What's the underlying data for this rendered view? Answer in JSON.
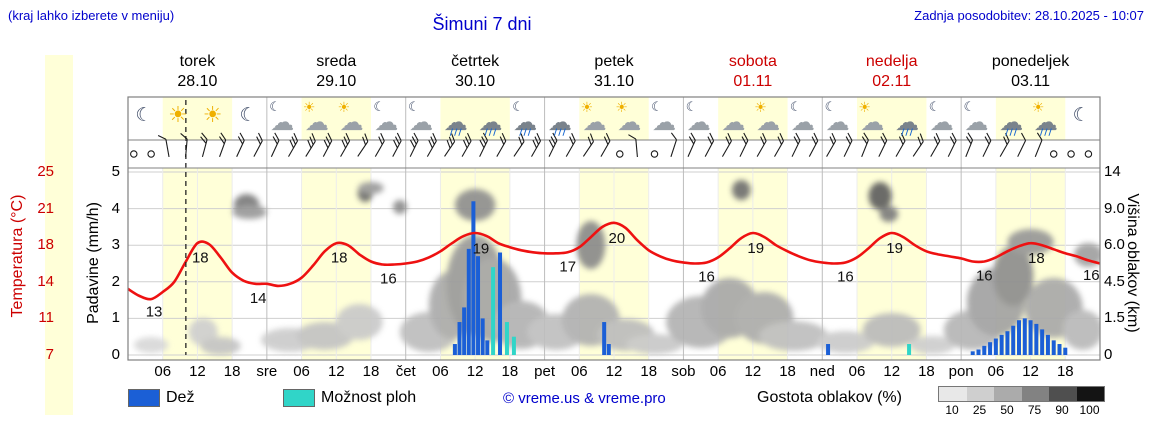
{
  "header": {
    "hint": "(kraj lahko izberete v meniju)",
    "updated": "Zadnja posodobitev: 28.10.2025 - 10:07",
    "title": "Šimuni 7 dni"
  },
  "colors": {
    "blue_text": "#0000cc",
    "red_text": "#cc0000",
    "temp_line": "#ee1111",
    "rain_bar": "#1b5fd6",
    "shower_bar": "#30d5c8",
    "day_band": "#ffffd8",
    "frame": "#808080",
    "grid": "#cfcfcf"
  },
  "days": [
    {
      "name": "torek",
      "date": "28.10",
      "red": false
    },
    {
      "name": "sreda",
      "date": "29.10",
      "red": false
    },
    {
      "name": "četrtek",
      "date": "30.10",
      "red": false
    },
    {
      "name": "petek",
      "date": "31.10",
      "red": false
    },
    {
      "name": "sobota",
      "date": "01.11",
      "red": true
    },
    {
      "name": "nedelja",
      "date": "02.11",
      "red": true
    },
    {
      "name": "ponedeljek",
      "date": "03.11",
      "red": false
    }
  ],
  "axes": {
    "temp_label": "Temperatura (°C)",
    "temp_ticks": [
      "25",
      "21",
      "18",
      "14",
      "11",
      "7"
    ],
    "precip_label": "Padavine (mm/h)",
    "precip_ticks": [
      "5",
      "4",
      "3",
      "2",
      "1",
      "0"
    ],
    "cloud_label": "Višina oblakov (km)",
    "cloud_ticks": [
      "14",
      "9.0",
      "6.0",
      "4.5",
      "1.5",
      "0"
    ],
    "hour_ticks": [
      "06",
      "12",
      "18"
    ],
    "day_abbrs": [
      "sre",
      "čet",
      "pet",
      "sob",
      "ned",
      "pon"
    ]
  },
  "legend": {
    "rain": "Dež",
    "showers": "Možnost ploh",
    "copyright": "© vreme.us & vreme.pro",
    "cloud_density": "Gostota oblakov (%)",
    "scale_values": [
      "10",
      "25",
      "50",
      "75",
      "90",
      "100"
    ],
    "scale_colors": [
      "#e8e8e8",
      "#cfcfcf",
      "#ababab",
      "#828282",
      "#4f4f4f",
      "#141414"
    ]
  },
  "chart_data": {
    "type": "meteogram",
    "hours_total": 168,
    "current_time_h": 10,
    "precip_axis_range": [
      0,
      5
    ],
    "temp_gridline_values": [
      25,
      21,
      18,
      14,
      11,
      7
    ],
    "temp_points": [
      [
        0,
        13.5
      ],
      [
        2,
        12.8
      ],
      [
        4,
        12.5
      ],
      [
        6,
        13.2
      ],
      [
        8,
        14.2
      ],
      [
        10,
        16.2
      ],
      [
        12,
        18
      ],
      [
        14,
        17.9
      ],
      [
        16,
        16.6
      ],
      [
        18,
        15.1
      ],
      [
        20,
        14.3
      ],
      [
        22,
        14
      ],
      [
        24,
        14
      ],
      [
        26,
        13.8
      ],
      [
        28,
        14
      ],
      [
        30,
        14.6
      ],
      [
        32,
        15.8
      ],
      [
        34,
        17.2
      ],
      [
        36,
        18
      ],
      [
        38,
        17.8
      ],
      [
        40,
        16.9
      ],
      [
        42,
        16.2
      ],
      [
        44,
        15.9
      ],
      [
        46,
        15.9
      ],
      [
        48,
        16
      ],
      [
        50,
        16.2
      ],
      [
        52,
        16.6
      ],
      [
        54,
        17.2
      ],
      [
        56,
        18
      ],
      [
        58,
        18.7
      ],
      [
        60,
        19
      ],
      [
        62,
        18.7
      ],
      [
        64,
        18
      ],
      [
        66,
        17.6
      ],
      [
        68,
        17.3
      ],
      [
        70,
        17.1
      ],
      [
        72,
        17
      ],
      [
        74,
        17
      ],
      [
        76,
        17.1
      ],
      [
        78,
        17.6
      ],
      [
        80,
        18.6
      ],
      [
        82,
        19.6
      ],
      [
        84,
        20
      ],
      [
        86,
        19.5
      ],
      [
        88,
        18.3
      ],
      [
        90,
        17.3
      ],
      [
        92,
        16.7
      ],
      [
        94,
        16.3
      ],
      [
        96,
        16.1
      ],
      [
        98,
        16
      ],
      [
        100,
        16.1
      ],
      [
        102,
        16.6
      ],
      [
        104,
        17.5
      ],
      [
        106,
        18.5
      ],
      [
        108,
        19
      ],
      [
        110,
        18.6
      ],
      [
        112,
        17.8
      ],
      [
        114,
        17.2
      ],
      [
        116,
        16.7
      ],
      [
        118,
        16.3
      ],
      [
        120,
        16.1
      ],
      [
        122,
        16
      ],
      [
        124,
        16.1
      ],
      [
        126,
        16.6
      ],
      [
        128,
        17.5
      ],
      [
        130,
        18.5
      ],
      [
        132,
        19
      ],
      [
        134,
        18.6
      ],
      [
        136,
        17.8
      ],
      [
        138,
        17.2
      ],
      [
        140,
        16.9
      ],
      [
        142,
        16.7
      ],
      [
        144,
        16.5
      ],
      [
        146,
        16.2
      ],
      [
        148,
        16.2
      ],
      [
        150,
        16.6
      ],
      [
        152,
        17.2
      ],
      [
        154,
        17.7
      ],
      [
        156,
        18
      ],
      [
        158,
        17.8
      ],
      [
        160,
        17.4
      ],
      [
        162,
        17
      ],
      [
        164,
        16.7
      ],
      [
        166,
        16.3
      ],
      [
        168,
        16
      ]
    ],
    "temp_labels": [
      [
        "13",
        4.5
      ],
      [
        "18",
        12.5
      ],
      [
        "14",
        22.5
      ],
      [
        "18",
        36.5
      ],
      [
        "16",
        45
      ],
      [
        "19",
        61
      ],
      [
        "17",
        76
      ],
      [
        "20",
        84.5
      ],
      [
        "16",
        100
      ],
      [
        "19",
        108.5
      ],
      [
        "16",
        124
      ],
      [
        "19",
        132.5
      ],
      [
        "16",
        148
      ],
      [
        "18",
        157
      ],
      [
        "16",
        166.5
      ]
    ],
    "precip_bars": [
      [
        56.5,
        0.3,
        "r"
      ],
      [
        57.3,
        0.9,
        "r"
      ],
      [
        58.1,
        1.3,
        "r"
      ],
      [
        58.9,
        2.9,
        "r"
      ],
      [
        59.7,
        4.2,
        "r"
      ],
      [
        60.5,
        2.7,
        "r"
      ],
      [
        61.3,
        1.0,
        "r"
      ],
      [
        62.1,
        0.4,
        "r"
      ],
      [
        63.1,
        2.4,
        "s"
      ],
      [
        64.3,
        2.8,
        "r"
      ],
      [
        65.5,
        0.9,
        "s"
      ],
      [
        66.7,
        0.5,
        "s"
      ],
      [
        82.3,
        0.9,
        "r"
      ],
      [
        83.1,
        0.3,
        "r"
      ],
      [
        121,
        0.3,
        "r"
      ],
      [
        135,
        0.3,
        "s"
      ],
      [
        146,
        0.1,
        "r"
      ],
      [
        147,
        0.15,
        "r"
      ],
      [
        148,
        0.25,
        "r"
      ],
      [
        149,
        0.35,
        "r"
      ],
      [
        150,
        0.45,
        "r"
      ],
      [
        151,
        0.55,
        "r"
      ],
      [
        152,
        0.65,
        "r"
      ],
      [
        153,
        0.8,
        "r"
      ],
      [
        154,
        0.95,
        "r"
      ],
      [
        155,
        1.0,
        "r"
      ],
      [
        156,
        0.95,
        "r"
      ],
      [
        157,
        0.85,
        "r"
      ],
      [
        158,
        0.7,
        "r"
      ],
      [
        159,
        0.55,
        "r"
      ],
      [
        160,
        0.4,
        "r"
      ],
      [
        161,
        0.3,
        "r"
      ],
      [
        162,
        0.2,
        "r"
      ]
    ],
    "weather_icons": [
      [
        3,
        "moon"
      ],
      [
        9,
        "sun"
      ],
      [
        15,
        "sun"
      ],
      [
        21,
        "moon"
      ],
      [
        27,
        "cloud-moon"
      ],
      [
        33,
        "sun-cloud"
      ],
      [
        39,
        "sun-cloud"
      ],
      [
        45,
        "cloud-moon"
      ],
      [
        51,
        "cloud-moon"
      ],
      [
        57,
        "rain"
      ],
      [
        63,
        "rain"
      ],
      [
        69,
        "rain-moon"
      ],
      [
        75,
        "rain"
      ],
      [
        81,
        "sun-cloud"
      ],
      [
        87,
        "sun-cloud"
      ],
      [
        93,
        "cloud-moon"
      ],
      [
        99,
        "cloud-moon"
      ],
      [
        105,
        "cloud"
      ],
      [
        111,
        "cloud-sun"
      ],
      [
        117,
        "cloud-moon"
      ],
      [
        123,
        "cloud-moon"
      ],
      [
        129,
        "cloud-sun"
      ],
      [
        135,
        "rain"
      ],
      [
        141,
        "cloud-moon"
      ],
      [
        147,
        "cloud-moon"
      ],
      [
        153,
        "rain"
      ],
      [
        159,
        "rain-sun"
      ],
      [
        165,
        "moon"
      ]
    ],
    "wind_barbs": [
      [
        1,
        0,
        0
      ],
      [
        4,
        0,
        0
      ],
      [
        7,
        100,
        1
      ],
      [
        10,
        85,
        1
      ],
      [
        13,
        75,
        2
      ],
      [
        16,
        70,
        2
      ],
      [
        19,
        65,
        2
      ],
      [
        22,
        62,
        2
      ],
      [
        25,
        65,
        2
      ],
      [
        28,
        60,
        3
      ],
      [
        31,
        58,
        3
      ],
      [
        34,
        62,
        3
      ],
      [
        37,
        60,
        3
      ],
      [
        40,
        56,
        2
      ],
      [
        43,
        60,
        2
      ],
      [
        46,
        62,
        3
      ],
      [
        49,
        64,
        3
      ],
      [
        52,
        60,
        3
      ],
      [
        55,
        56,
        3
      ],
      [
        58,
        60,
        3
      ],
      [
        61,
        64,
        3
      ],
      [
        64,
        60,
        2
      ],
      [
        67,
        56,
        2
      ],
      [
        70,
        60,
        3
      ],
      [
        73,
        64,
        3
      ],
      [
        76,
        60,
        2
      ],
      [
        79,
        56,
        2
      ],
      [
        82,
        60,
        2
      ],
      [
        85,
        0,
        0
      ],
      [
        88,
        95,
        1
      ],
      [
        91,
        0,
        0
      ],
      [
        94,
        72,
        1
      ],
      [
        97,
        66,
        2
      ],
      [
        100,
        62,
        2
      ],
      [
        103,
        60,
        2
      ],
      [
        106,
        64,
        2
      ],
      [
        109,
        60,
        2
      ],
      [
        112,
        60,
        2
      ],
      [
        115,
        64,
        2
      ],
      [
        118,
        62,
        2
      ],
      [
        121,
        60,
        2
      ],
      [
        124,
        64,
        2
      ],
      [
        127,
        68,
        2
      ],
      [
        130,
        64,
        2
      ],
      [
        133,
        60,
        2
      ],
      [
        136,
        56,
        2
      ],
      [
        139,
        60,
        2
      ],
      [
        142,
        64,
        2
      ],
      [
        145,
        68,
        2
      ],
      [
        148,
        64,
        2
      ],
      [
        151,
        60,
        2
      ],
      [
        154,
        64,
        1
      ],
      [
        157,
        68,
        1
      ],
      [
        160,
        0,
        0
      ],
      [
        163,
        0,
        0
      ],
      [
        166,
        0,
        0
      ]
    ],
    "cloud_blobs": [
      [
        4,
        345,
        3,
        8,
        "#d8d8d8"
      ],
      [
        13,
        332,
        2.5,
        14,
        "#cfcfcf"
      ],
      [
        16,
        346,
        3.5,
        9,
        "#c4c4c4"
      ],
      [
        20.5,
        205,
        2.2,
        11,
        "#7a7a7a"
      ],
      [
        21,
        212,
        3,
        7,
        "#999999"
      ],
      [
        28,
        340,
        5,
        12,
        "#cccccc"
      ],
      [
        34,
        336,
        5,
        14,
        "#c3c3c3"
      ],
      [
        40,
        322,
        4,
        18,
        "#c9c9c9"
      ],
      [
        41,
        193,
        1.3,
        9,
        "#6a6a6a"
      ],
      [
        42,
        188,
        2.2,
        6,
        "#9a9a9a"
      ],
      [
        47,
        207,
        1.2,
        7,
        "#8c8c8c"
      ],
      [
        52,
        332,
        5,
        20,
        "#bdbdbd"
      ],
      [
        56,
        305,
        4,
        34,
        "#ababab"
      ],
      [
        60,
        285,
        5,
        50,
        "#9b9b9b"
      ],
      [
        60,
        205,
        3.5,
        16,
        "#8f8f8f"
      ],
      [
        63,
        300,
        5,
        42,
        "#a5a5a5"
      ],
      [
        68,
        325,
        5,
        24,
        "#b3b3b3"
      ],
      [
        74,
        332,
        5,
        18,
        "#bfbfbf"
      ],
      [
        80,
        245,
        2.5,
        24,
        "#8a8a8a"
      ],
      [
        80,
        320,
        5,
        26,
        "#b0b0b0"
      ],
      [
        86,
        335,
        5,
        16,
        "#bcbcbc"
      ],
      [
        91,
        344,
        5,
        10,
        "#c8c8c8"
      ],
      [
        99,
        322,
        6,
        26,
        "#b2b2b2"
      ],
      [
        104,
        308,
        5,
        30,
        "#a8a8a8"
      ],
      [
        106,
        190,
        1.6,
        10,
        "#6f6f6f"
      ],
      [
        110,
        318,
        5,
        26,
        "#acacac"
      ],
      [
        115,
        336,
        6,
        15,
        "#bebebe"
      ],
      [
        124,
        342,
        5,
        11,
        "#cacaca"
      ],
      [
        130,
        196,
        2,
        14,
        "#5f5f5f"
      ],
      [
        131.5,
        214,
        1.6,
        8,
        "#7d7d7d"
      ],
      [
        132,
        330,
        5,
        17,
        "#bababa"
      ],
      [
        139,
        345,
        4,
        9,
        "#cecece"
      ],
      [
        146,
        330,
        5,
        20,
        "#b6b6b6"
      ],
      [
        150,
        302,
        5,
        34,
        "#a2a2a2"
      ],
      [
        153,
        276,
        3.5,
        30,
        "#8e8e8e"
      ],
      [
        156,
        242,
        4,
        13,
        "#979797"
      ],
      [
        160,
        308,
        5,
        30,
        "#a9a9a9"
      ],
      [
        165,
        330,
        3.5,
        20,
        "#b9b9b9"
      ],
      [
        166,
        255,
        2.5,
        12,
        "#a0a0a0"
      ]
    ]
  }
}
